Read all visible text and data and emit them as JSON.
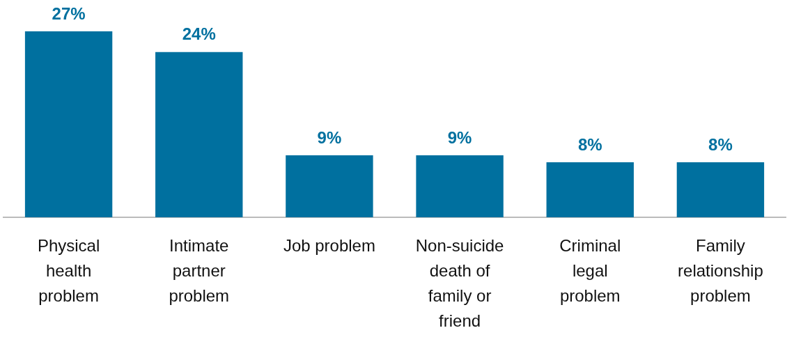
{
  "chart_data": {
    "type": "bar",
    "categories": [
      "Physical health problem",
      "Intimate partner problem",
      "Job problem",
      "Non-suicide death of family or friend",
      "Criminal legal problem",
      "Family relationship problem"
    ],
    "values": [
      27,
      24,
      9,
      9,
      8,
      8
    ],
    "color": "#00709f",
    "value_labels": [
      "27%",
      "24%",
      "9%",
      "9%",
      "8%",
      "8%"
    ],
    "grid": false,
    "legend": false
  }
}
